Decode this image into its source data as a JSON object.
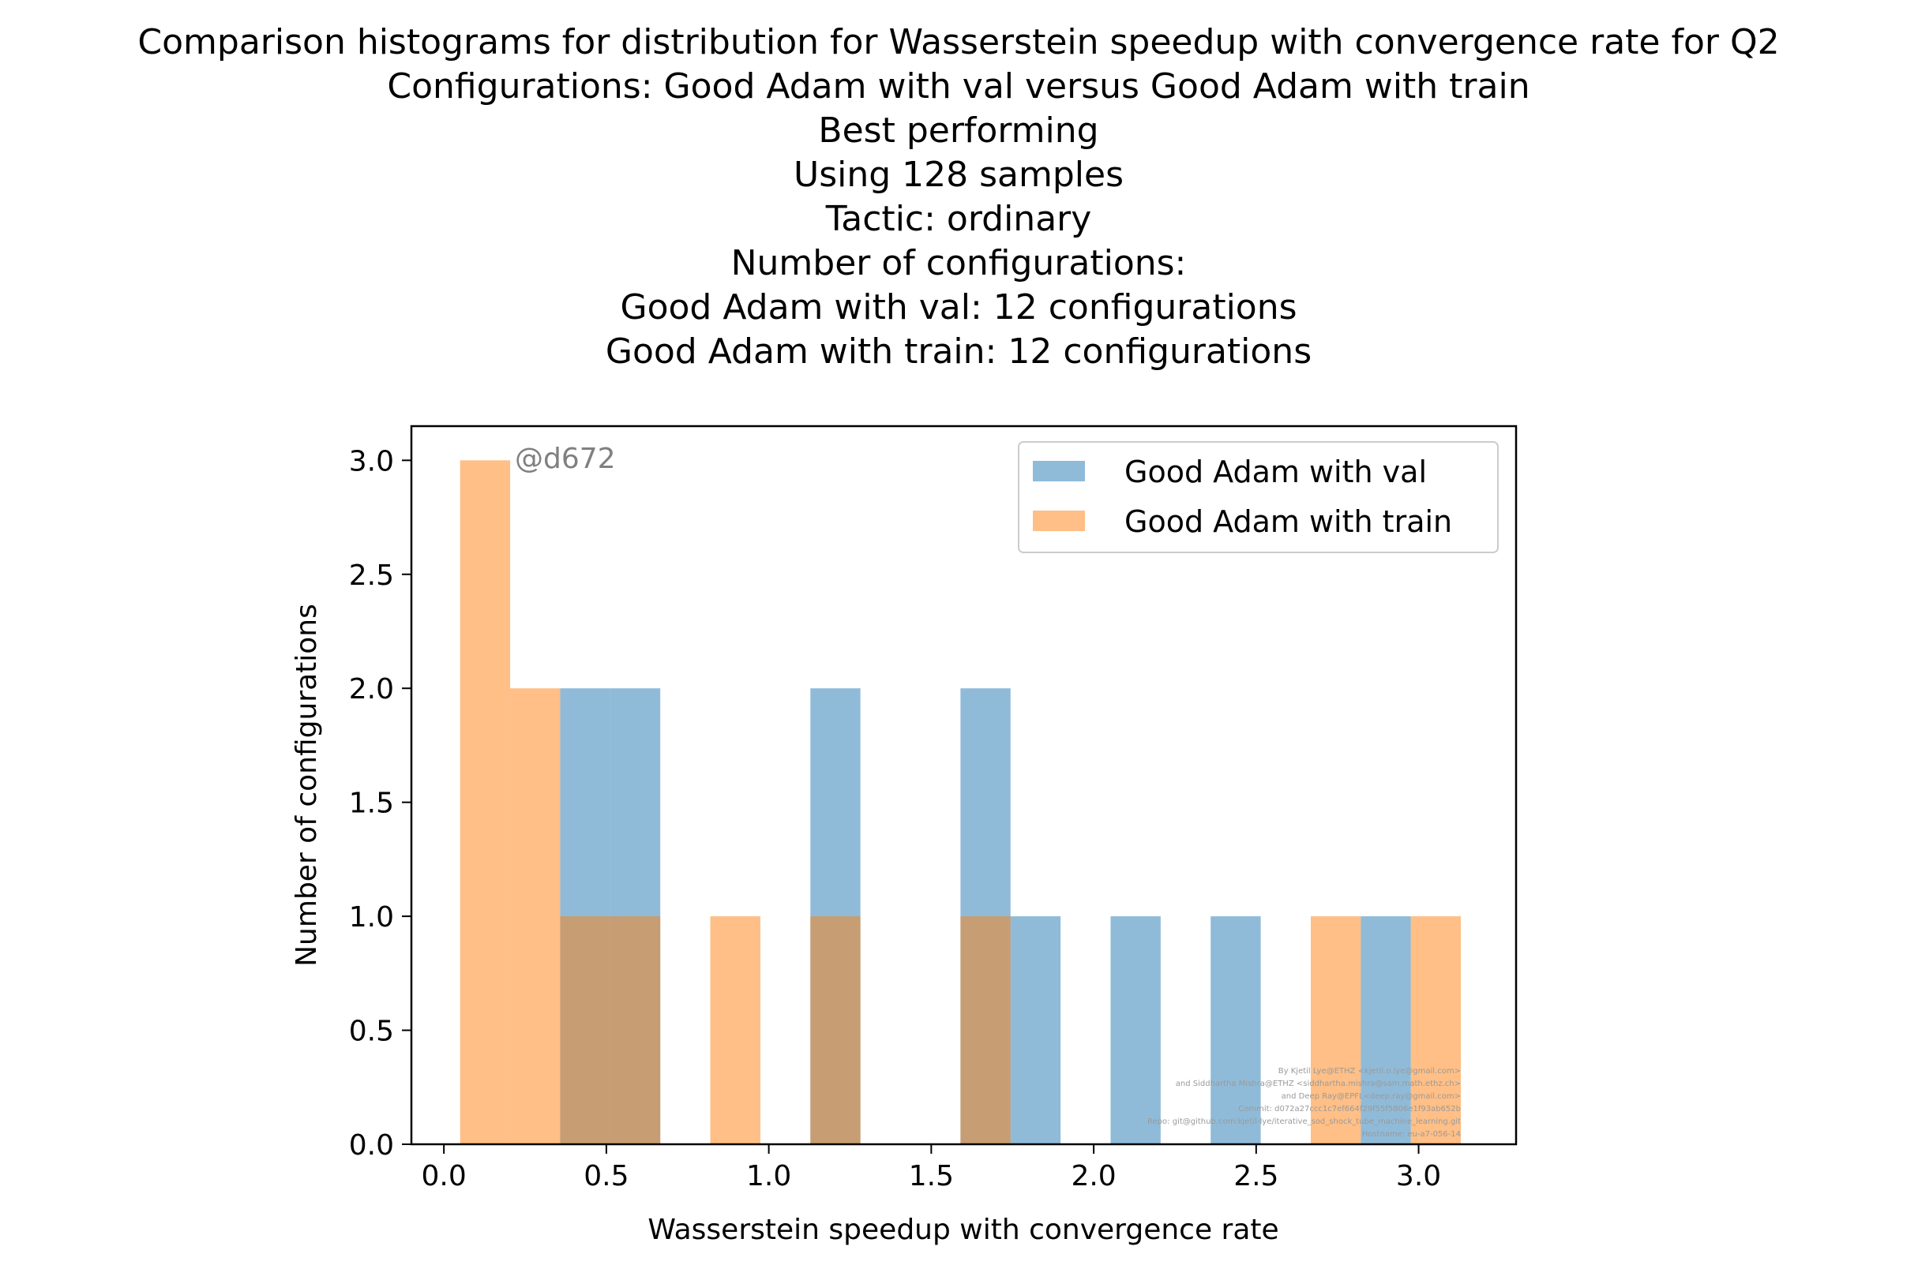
{
  "chart_data": {
    "type": "bar",
    "title_lines": [
      "Comparison histograms for distribution for Wasserstein speedup with convergence rate for Q2",
      "Configurations: Good Adam with val versus Good Adam with train",
      "Best performing",
      "Using 128 samples",
      "Tactic: ordinary",
      "Number of configurations:",
      "Good Adam with val: 12 configurations",
      "Good Adam with train: 12 configurations"
    ],
    "xlabel": "Wasserstein speedup with convergence rate",
    "ylabel": "Number of configurations",
    "xlim": [
      -0.1,
      3.3
    ],
    "ylim": [
      0,
      3.15
    ],
    "xticks": [
      0.0,
      0.5,
      1.0,
      1.5,
      2.0,
      2.5,
      3.0
    ],
    "xtick_labels": [
      "0.0",
      "0.5",
      "1.0",
      "1.5",
      "2.0",
      "2.5",
      "3.0"
    ],
    "yticks": [
      0.0,
      0.5,
      1.0,
      1.5,
      2.0,
      2.5,
      3.0
    ],
    "ytick_labels": [
      "0.0",
      "0.5",
      "1.0",
      "1.5",
      "2.0",
      "2.5",
      "3.0"
    ],
    "bin_edges": [
      0.05,
      0.204,
      0.358,
      0.512,
      0.666,
      0.82,
      0.974,
      1.128,
      1.282,
      1.436,
      1.59,
      1.744,
      1.898,
      2.052,
      2.206,
      2.36,
      2.514,
      2.668,
      2.822,
      2.976,
      3.13
    ],
    "series": [
      {
        "name": "Good Adam with val",
        "color": "#1f77b4",
        "alpha": 0.5,
        "values": [
          0,
          0,
          2,
          2,
          0,
          0,
          0,
          2,
          0,
          0,
          2,
          1,
          0,
          1,
          0,
          1,
          0,
          0,
          1,
          0
        ]
      },
      {
        "name": "Good Adam with train",
        "color": "#ff7f0e",
        "alpha": 0.5,
        "values": [
          3,
          2,
          1,
          1,
          0,
          1,
          0,
          1,
          0,
          0,
          1,
          0,
          0,
          0,
          0,
          0,
          0,
          1,
          0,
          1
        ]
      }
    ],
    "legend_position": "top-right",
    "grid": false,
    "annotation": "@d672",
    "credit_lines": [
      "By Kjetil Lye@ETHZ <kjetil.o.lye@gmail.com>",
      "and Siddhartha Mishra@ETHZ <siddhartha.mishra@sam.math.ethz.ch>",
      "and Deep Ray@EPFL<deep.ray@gmail.com>",
      "Commit: d072a27ccc1c7ef664f29f55f5806e1f93ab652b",
      "Repo: git@github.com:kjetil-lye/iterative_sod_shock_tube_machine_learning.git",
      "Hostname: eu-a7-056-14"
    ]
  }
}
